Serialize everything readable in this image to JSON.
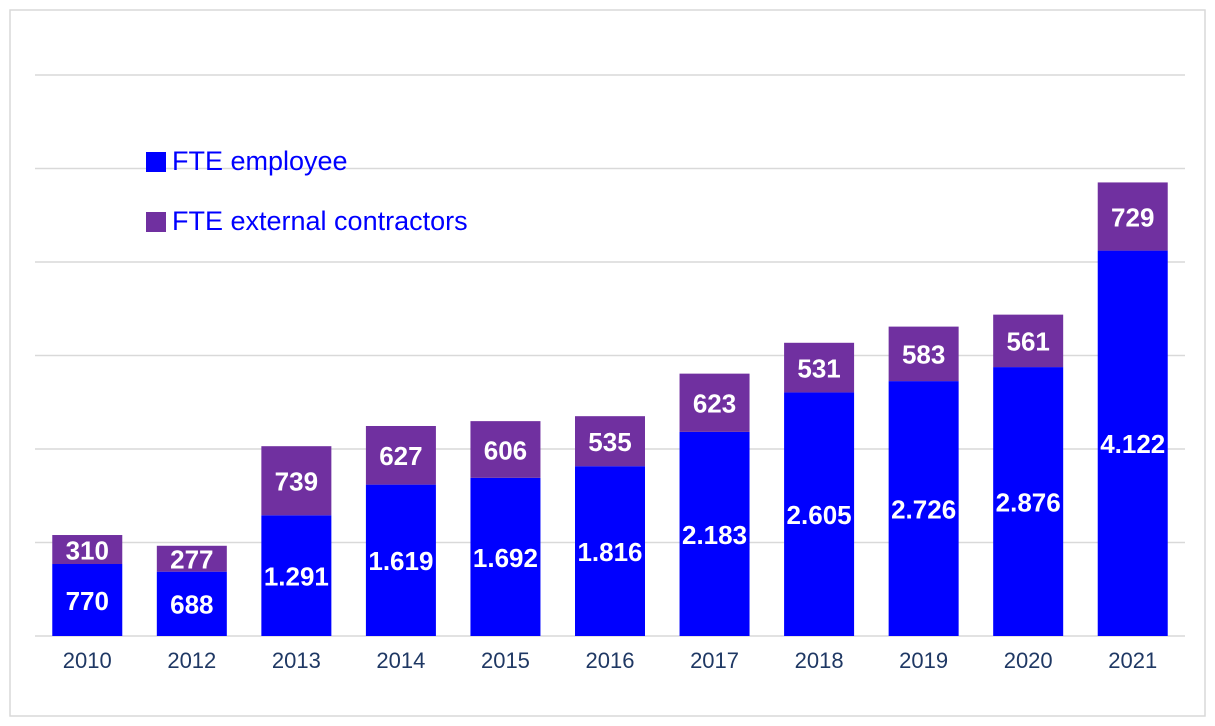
{
  "chart_data": {
    "type": "stacked_bar",
    "categories": [
      "2010",
      "2012",
      "2013",
      "2014",
      "2015",
      "2016",
      "2017",
      "2018",
      "2019",
      "2020",
      "2021"
    ],
    "series": [
      {
        "name": "FTE employee",
        "color": "#0000ff",
        "values": [
          770,
          688,
          1291,
          1619,
          1692,
          1816,
          2183,
          2605,
          2726,
          2876,
          4122
        ],
        "value_labels": [
          "770",
          "688",
          "1.291",
          "1.619",
          "1.692",
          "1.816",
          "2.183",
          "2.605",
          "2.726",
          "2.876",
          "4.122"
        ]
      },
      {
        "name": "FTE external contractors",
        "color": "#7030a0",
        "values": [
          310,
          277,
          739,
          627,
          606,
          535,
          623,
          531,
          583,
          561,
          729
        ],
        "value_labels": [
          "310",
          "277",
          "739",
          "627",
          "606",
          "535",
          "623",
          "531",
          "583",
          "561",
          "729"
        ]
      }
    ],
    "ylim": [
      0,
      6000
    ],
    "yticks": [
      0,
      1000,
      2000,
      3000,
      4000,
      5000,
      6000
    ],
    "grid": true,
    "legend": "top-left"
  }
}
